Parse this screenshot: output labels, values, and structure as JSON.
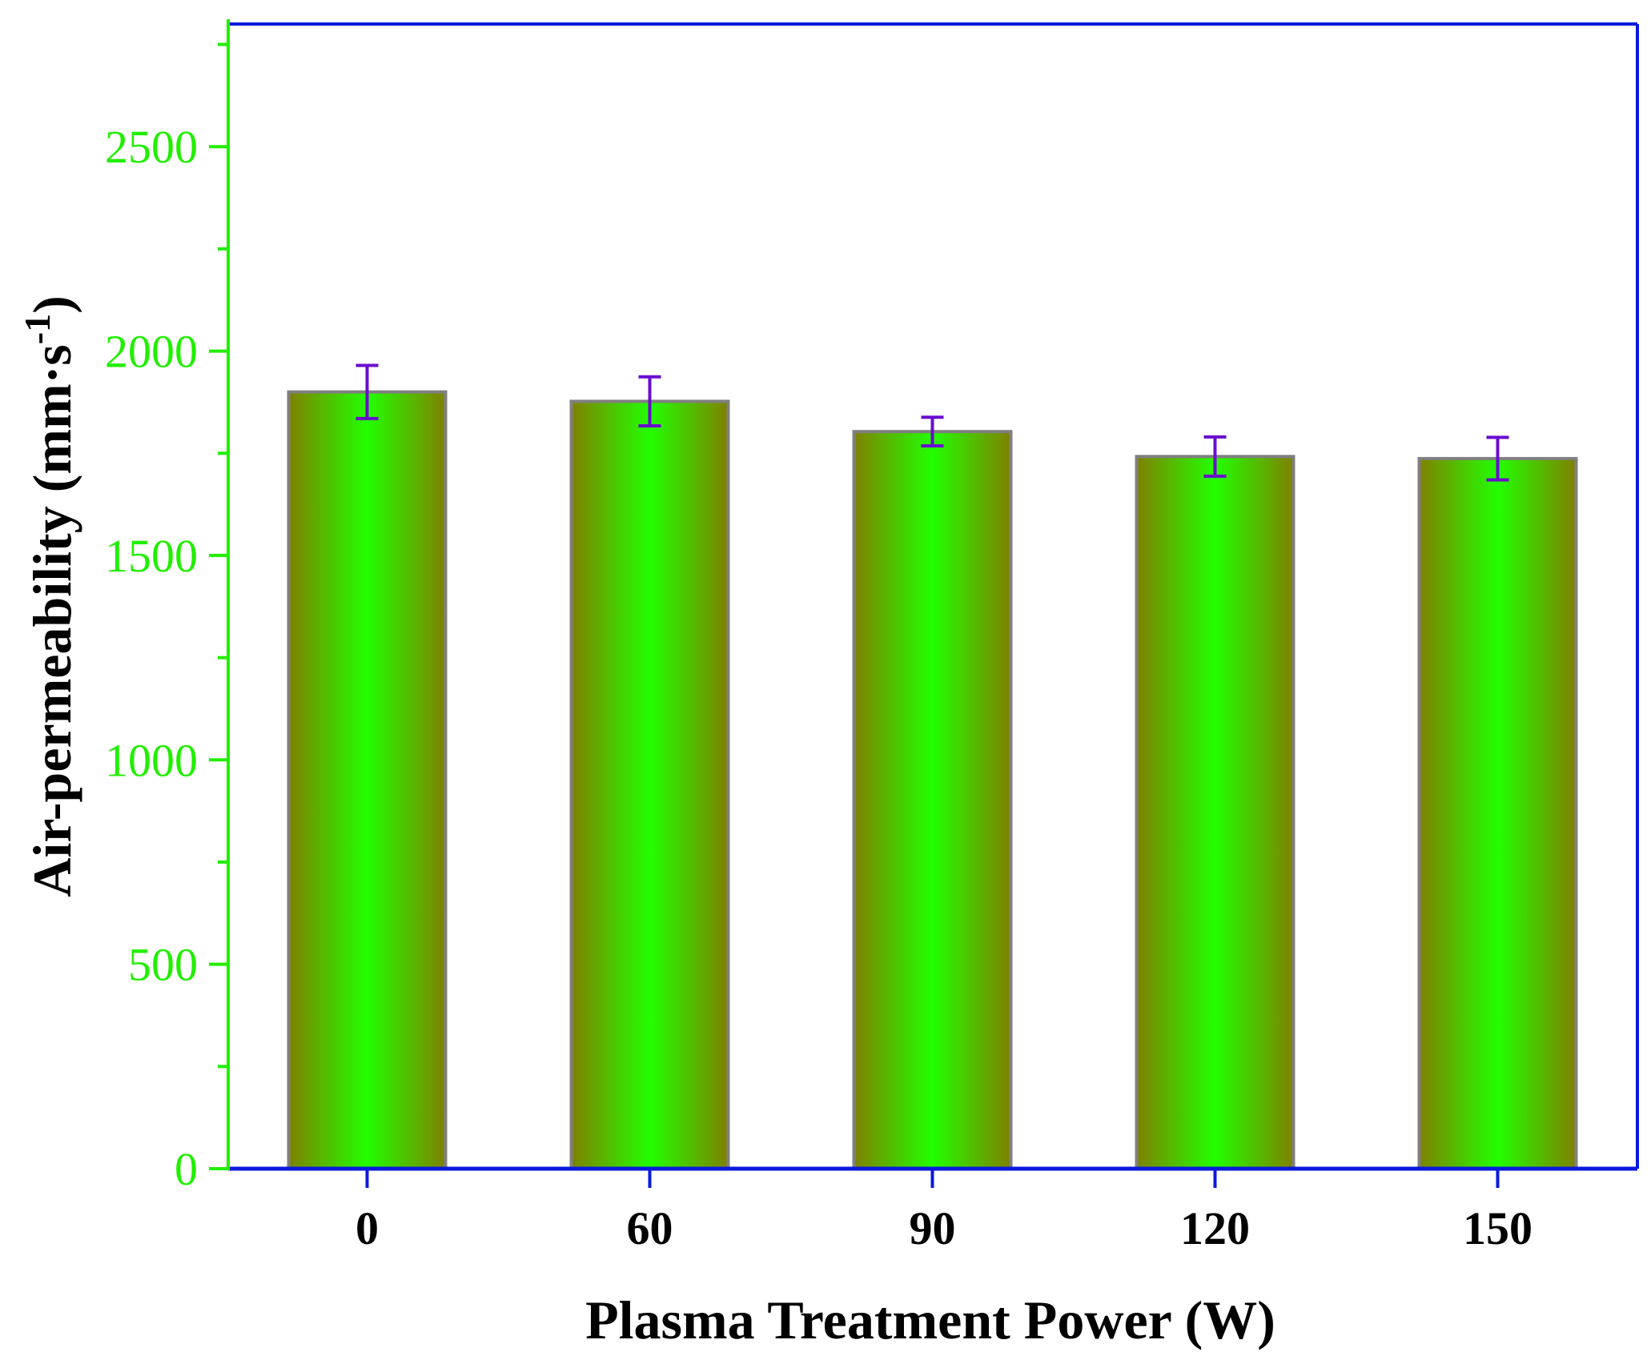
{
  "chart_data": {
    "type": "bar",
    "title": "",
    "xlabel": "Plasma Treatment Power (W)",
    "ylabel": {
      "prefix": "Air-permeability (mm·s",
      "superscript": "-1",
      "suffix": ")"
    },
    "categories": [
      "0",
      "60",
      "90",
      "120",
      "150"
    ],
    "values": [
      1900,
      1877,
      1803,
      1742,
      1737
    ],
    "errors": [
      65,
      60,
      35,
      48,
      52
    ],
    "ylim": [
      0,
      2800
    ],
    "yticks": [
      0,
      500,
      1000,
      1500,
      2000,
      2500
    ],
    "yticks_minor": [
      250,
      750,
      1250,
      1750,
      2250,
      2750
    ],
    "grid": false,
    "legend": "none",
    "colors": {
      "bar_center": "#22ff00",
      "bar_edge": "#808000",
      "bar_outline": "#808080",
      "error_bar": "#6a0dce",
      "y_axis": "#22ee00",
      "y_tick_label": "#22ee00",
      "frame": "#0a1adc",
      "text": "#000000"
    }
  }
}
